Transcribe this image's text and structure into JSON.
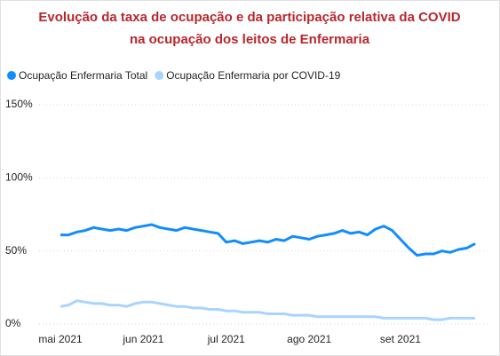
{
  "chart_data": {
    "type": "line",
    "title": [
      "Evolução da taxa de ocupação e da participação relativa da COVID",
      "na ocupação dos leitos de Enfermaria"
    ],
    "title_color": "#b8272d",
    "categories": [
      "mai 2021",
      null,
      null,
      null,
      null,
      null,
      null,
      null,
      null,
      null,
      "jun 2021",
      null,
      null,
      null,
      null,
      null,
      null,
      null,
      null,
      null,
      "jul 2021",
      null,
      null,
      null,
      null,
      null,
      null,
      null,
      null,
      null,
      "ago 2021",
      null,
      null,
      null,
      null,
      null,
      null,
      null,
      null,
      null,
      null,
      "set 2021",
      null,
      null,
      null,
      null,
      null,
      null,
      null,
      null,
      null
    ],
    "series": [
      {
        "name": "Ocupação Enfermaria Total",
        "color": "#118dff",
        "values": [
          61,
          61,
          63,
          64,
          66,
          65,
          64,
          65,
          64,
          66,
          67,
          68,
          66,
          65,
          64,
          66,
          65,
          64,
          63,
          62,
          56,
          57,
          55,
          56,
          57,
          56,
          58,
          57,
          60,
          59,
          58,
          60,
          61,
          62,
          64,
          62,
          63,
          61,
          65,
          67,
          64,
          58,
          52,
          47,
          48,
          48,
          50,
          49,
          51,
          52,
          55
        ]
      },
      {
        "name": "Ocupação Enfermaria por COVID-19",
        "color": "#a9d4ff",
        "values": [
          12,
          13,
          16,
          15,
          14,
          14,
          13,
          13,
          12,
          14,
          15,
          15,
          14,
          13,
          12,
          12,
          11,
          11,
          10,
          10,
          9,
          9,
          8,
          8,
          8,
          7,
          7,
          7,
          6,
          6,
          6,
          5,
          5,
          5,
          5,
          5,
          5,
          5,
          5,
          4,
          4,
          4,
          4,
          4,
          4,
          3,
          3,
          4,
          4,
          4,
          4
        ]
      }
    ],
    "ylim": [
      0,
      150
    ],
    "yticks": [
      {
        "value": 0,
        "label": "0%"
      },
      {
        "value": 50,
        "label": "50%"
      },
      {
        "value": 100,
        "label": "100%"
      },
      {
        "value": 150,
        "label": "150%"
      }
    ],
    "grid": true
  }
}
